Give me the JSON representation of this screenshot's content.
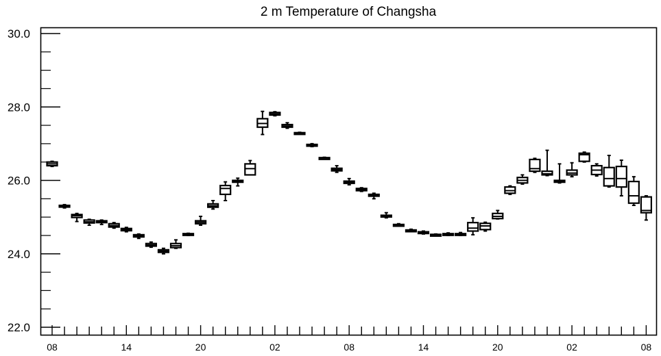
{
  "chart_data": {
    "type": "box",
    "title": "2 m Temperature of Changsha",
    "xlabel": "",
    "ylabel": "",
    "ylim": [
      22.0,
      30.0
    ],
    "yticks": [
      "22.0",
      "24.0",
      "26.0",
      "28.0",
      "30.0"
    ],
    "xtick_labels": [
      "08",
      "14",
      "20",
      "02",
      "08",
      "14",
      "20",
      "02",
      "08"
    ],
    "grid": false,
    "series": [
      {
        "boxes": [
          {
            "x": 0,
            "min": 26.38,
            "q1": 26.4,
            "median": 26.45,
            "q3": 26.5,
            "max": 26.52
          },
          {
            "x": 1,
            "min": 25.25,
            "q1": 25.28,
            "median": 25.3,
            "q3": 25.32,
            "max": 25.34
          },
          {
            "x": 2,
            "min": 24.88,
            "q1": 24.99,
            "median": 25.04,
            "q3": 25.07,
            "max": 25.1
          },
          {
            "x": 3,
            "min": 24.78,
            "q1": 24.84,
            "median": 24.87,
            "q3": 24.92,
            "max": 24.94
          },
          {
            "x": 4,
            "min": 24.8,
            "q1": 24.85,
            "median": 24.87,
            "q3": 24.9,
            "max": 24.92
          },
          {
            "x": 5,
            "min": 24.7,
            "q1": 24.73,
            "median": 24.77,
            "q3": 24.82,
            "max": 24.85
          },
          {
            "x": 6,
            "min": 24.6,
            "q1": 24.63,
            "median": 24.66,
            "q3": 24.69,
            "max": 24.72
          },
          {
            "x": 7,
            "min": 24.42,
            "q1": 24.46,
            "median": 24.49,
            "q3": 24.52,
            "max": 24.54
          },
          {
            "x": 8,
            "min": 24.18,
            "q1": 24.21,
            "median": 24.24,
            "q3": 24.28,
            "max": 24.32
          },
          {
            "x": 9,
            "min": 24.0,
            "q1": 24.04,
            "median": 24.07,
            "q3": 24.11,
            "max": 24.15
          },
          {
            "x": 10,
            "min": 24.15,
            "q1": 24.17,
            "median": 24.22,
            "q3": 24.28,
            "max": 24.38
          },
          {
            "x": 11,
            "min": 24.5,
            "q1": 24.52,
            "median": 24.53,
            "q3": 24.55,
            "max": 24.56
          },
          {
            "x": 12,
            "min": 24.78,
            "q1": 24.82,
            "median": 24.86,
            "q3": 24.9,
            "max": 25.02
          },
          {
            "x": 13,
            "min": 25.22,
            "q1": 25.27,
            "median": 25.31,
            "q3": 25.36,
            "max": 25.45
          },
          {
            "x": 14,
            "min": 25.45,
            "q1": 25.62,
            "median": 25.78,
            "q3": 25.86,
            "max": 25.96
          },
          {
            "x": 15,
            "min": 25.85,
            "q1": 25.95,
            "median": 25.97,
            "q3": 26.0,
            "max": 26.06
          },
          {
            "x": 16,
            "min": 26.15,
            "q1": 26.15,
            "median": 26.32,
            "q3": 26.45,
            "max": 26.54
          },
          {
            "x": 17,
            "min": 27.25,
            "q1": 27.45,
            "median": 27.55,
            "q3": 27.68,
            "max": 27.88
          },
          {
            "x": 18,
            "min": 27.76,
            "q1": 27.78,
            "median": 27.81,
            "q3": 27.85,
            "max": 27.87
          },
          {
            "x": 19,
            "min": 27.42,
            "q1": 27.45,
            "median": 27.48,
            "q3": 27.52,
            "max": 27.57
          },
          {
            "x": 20,
            "min": 27.26,
            "q1": 27.27,
            "median": 27.29,
            "q3": 27.3,
            "max": 27.31
          },
          {
            "x": 21,
            "min": 26.92,
            "q1": 26.94,
            "median": 26.96,
            "q3": 26.98,
            "max": 27.0
          },
          {
            "x": 22,
            "min": 26.58,
            "q1": 26.59,
            "median": 26.61,
            "q3": 26.62,
            "max": 26.63
          },
          {
            "x": 23,
            "min": 26.22,
            "q1": 26.26,
            "median": 26.29,
            "q3": 26.33,
            "max": 26.4
          },
          {
            "x": 24,
            "min": 25.88,
            "q1": 25.92,
            "median": 25.95,
            "q3": 25.98,
            "max": 26.05
          },
          {
            "x": 25,
            "min": 25.7,
            "q1": 25.72,
            "median": 25.75,
            "q3": 25.78,
            "max": 25.8
          },
          {
            "x": 26,
            "min": 25.5,
            "q1": 25.57,
            "median": 25.6,
            "q3": 25.62,
            "max": 25.65
          },
          {
            "x": 27,
            "min": 24.98,
            "q1": 25.01,
            "median": 25.03,
            "q3": 25.05,
            "max": 25.12
          },
          {
            "x": 28,
            "min": 24.76,
            "q1": 24.77,
            "median": 24.79,
            "q3": 24.8,
            "max": 24.82
          },
          {
            "x": 29,
            "min": 24.61,
            "q1": 24.62,
            "median": 24.64,
            "q3": 24.65,
            "max": 24.67
          },
          {
            "x": 30,
            "min": 24.54,
            "q1": 24.56,
            "median": 24.58,
            "q3": 24.6,
            "max": 24.62
          },
          {
            "x": 31,
            "min": 24.5,
            "q1": 24.51,
            "median": 24.52,
            "q3": 24.53,
            "max": 24.54
          },
          {
            "x": 32,
            "min": 24.5,
            "q1": 24.51,
            "median": 24.53,
            "q3": 24.55,
            "max": 24.57
          },
          {
            "x": 33,
            "min": 24.5,
            "q1": 24.51,
            "median": 24.52,
            "q3": 24.55,
            "max": 24.58
          },
          {
            "x": 34,
            "min": 24.52,
            "q1": 24.62,
            "median": 24.7,
            "q3": 24.85,
            "max": 24.98
          },
          {
            "x": 35,
            "min": 24.62,
            "q1": 24.66,
            "median": 24.76,
            "q3": 24.83,
            "max": 24.86
          },
          {
            "x": 36,
            "min": 24.95,
            "q1": 24.96,
            "median": 25.02,
            "q3": 25.1,
            "max": 25.18
          },
          {
            "x": 37,
            "min": 25.62,
            "q1": 25.65,
            "median": 25.72,
            "q3": 25.82,
            "max": 25.85
          },
          {
            "x": 38,
            "min": 25.9,
            "q1": 25.93,
            "median": 26.0,
            "q3": 26.08,
            "max": 26.15
          },
          {
            "x": 39,
            "min": 26.22,
            "q1": 26.25,
            "median": 26.32,
            "q3": 26.57,
            "max": 26.6
          },
          {
            "x": 40,
            "min": 26.13,
            "q1": 26.15,
            "median": 26.18,
            "q3": 26.25,
            "max": 26.82
          },
          {
            "x": 41,
            "min": 25.93,
            "q1": 25.95,
            "median": 25.98,
            "q3": 26.0,
            "max": 26.45
          },
          {
            "x": 42,
            "min": 26.1,
            "q1": 26.15,
            "median": 26.2,
            "q3": 26.28,
            "max": 26.48
          },
          {
            "x": 43,
            "min": 26.5,
            "q1": 26.52,
            "median": 26.7,
            "q3": 26.74,
            "max": 26.77
          },
          {
            "x": 44,
            "min": 26.12,
            "q1": 26.16,
            "median": 26.28,
            "q3": 26.4,
            "max": 26.45
          },
          {
            "x": 45,
            "min": 25.82,
            "q1": 25.85,
            "median": 26.05,
            "q3": 26.35,
            "max": 26.68
          },
          {
            "x": 46,
            "min": 25.58,
            "q1": 25.82,
            "median": 26.05,
            "q3": 26.38,
            "max": 26.55
          },
          {
            "x": 47,
            "min": 25.32,
            "q1": 25.38,
            "median": 25.58,
            "q3": 25.97,
            "max": 26.1
          },
          {
            "x": 48,
            "min": 24.92,
            "q1": 25.12,
            "median": 25.18,
            "q3": 25.55,
            "max": 25.58
          }
        ]
      }
    ]
  }
}
